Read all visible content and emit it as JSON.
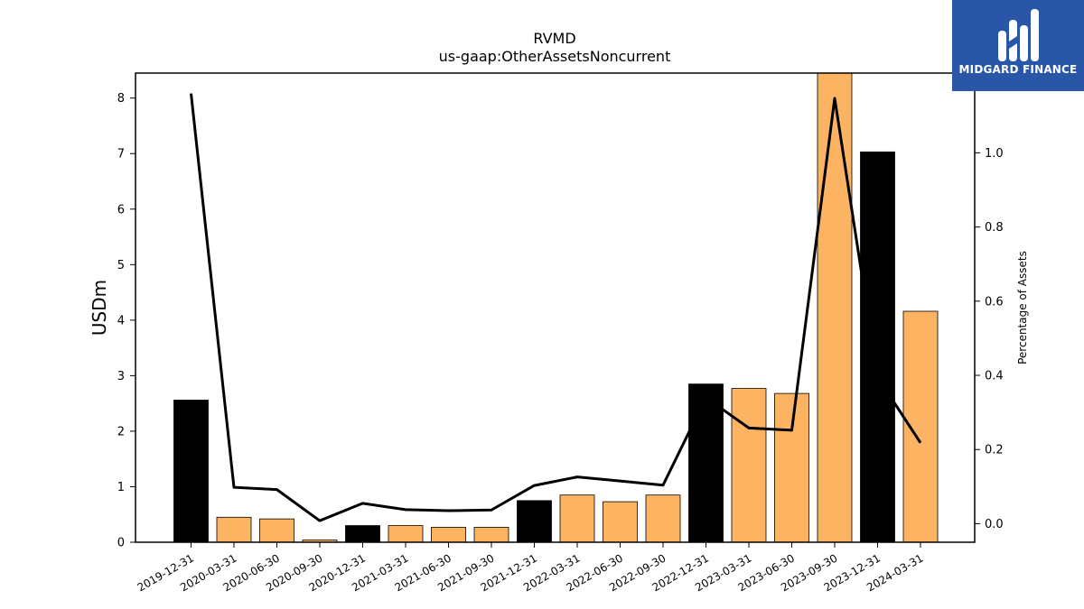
{
  "chart_data": {
    "type": "bar",
    "title": "RVMD",
    "subtitle": "us-gaap:OtherAssetsNoncurrent",
    "ylabel": "USDm",
    "ylabel_right": "Percentage of Assets",
    "ylim": [
      0,
      8.45
    ],
    "ylim_right": [
      -0.05,
      1.215
    ],
    "yticks": [
      0,
      1,
      2,
      3,
      4,
      5,
      6,
      7,
      8
    ],
    "yticks_right": [
      0.0,
      0.2,
      0.4,
      0.6,
      0.8,
      1.0
    ],
    "categories": [
      "2019-12-31",
      "2020-03-31",
      "2020-06-30",
      "2020-09-30",
      "2020-12-31",
      "2021-03-31",
      "2021-06-30",
      "2021-09-30",
      "2021-12-31",
      "2022-03-31",
      "2022-06-30",
      "2022-09-30",
      "2022-12-31",
      "2023-03-31",
      "2023-06-30",
      "2023-09-30",
      "2023-12-31",
      "2024-03-31"
    ],
    "series": [
      {
        "type": "bar",
        "axis": "left",
        "values": [
          2.56,
          0.45,
          0.42,
          0.04,
          0.3,
          0.3,
          0.27,
          0.27,
          0.75,
          0.85,
          0.73,
          0.85,
          2.85,
          2.77,
          2.68,
          8.45,
          7.03,
          4.16
        ],
        "colors": [
          "#000000",
          "#fdb462",
          "#fdb462",
          "#fdb462",
          "#000000",
          "#fdb462",
          "#fdb462",
          "#fdb462",
          "#000000",
          "#fdb462",
          "#fdb462",
          "#fdb462",
          "#000000",
          "#fdb462",
          "#fdb462",
          "#fdb462",
          "#000000",
          "#fdb462"
        ]
      },
      {
        "type": "line",
        "axis": "right",
        "color": "#000000",
        "values": [
          1.16,
          0.098,
          0.092,
          0.008,
          0.055,
          0.038,
          0.035,
          0.037,
          0.103,
          0.126,
          0.115,
          0.104,
          0.34,
          0.258,
          0.252,
          1.147,
          0.395,
          0.218
        ]
      }
    ],
    "legend": "none",
    "grid": false
  },
  "logo": {
    "text": "MIDGARD FINANCE",
    "color": "#2a56a8"
  }
}
